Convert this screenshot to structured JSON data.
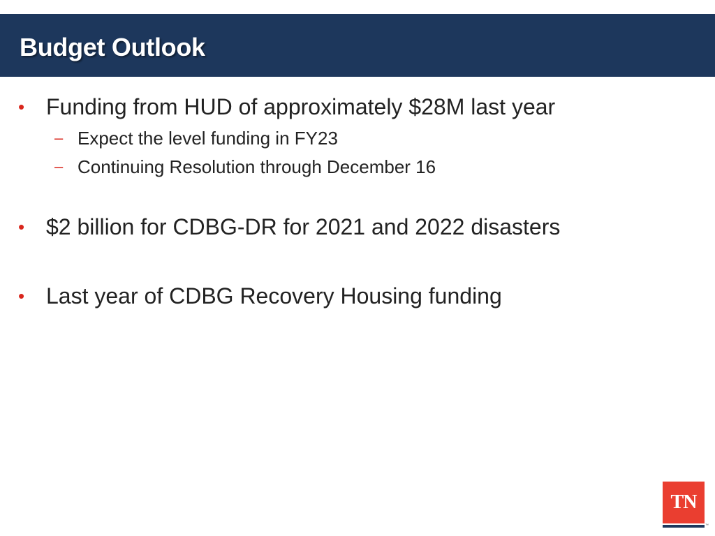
{
  "slide": {
    "title": "Budget Outlook",
    "bullets": [
      {
        "marker": "•",
        "text": "Funding from HUD of approximately $28M last year",
        "sub_bullets": [
          {
            "marker": "–",
            "text": "Expect the level funding in FY23"
          },
          {
            "marker": "–",
            "text": "Continuing Resolution through December 16"
          }
        ]
      },
      {
        "marker": "•",
        "text": "$2 billion for CDBG-DR for 2021 and 2022 disasters"
      },
      {
        "marker": "•",
        "text": "Last year of CDBG Recovery Housing funding"
      }
    ]
  },
  "logo": {
    "text": "TN",
    "trademark": "™",
    "icon": "tennessee-state-logo"
  },
  "colors": {
    "title_bar": "#1d375c",
    "bullet_accent": "#d9261c",
    "logo_red": "#ea3e30"
  }
}
